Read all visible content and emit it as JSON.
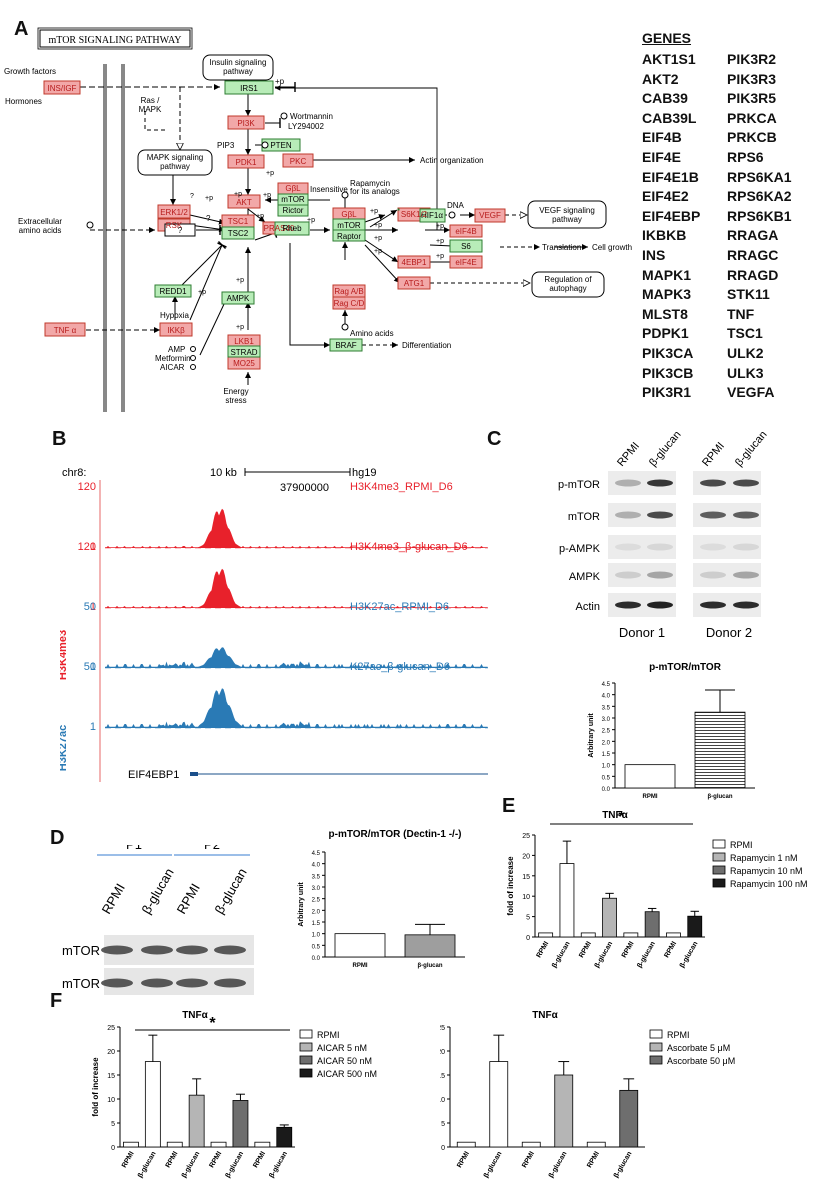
{
  "panels": {
    "A": "A",
    "B": "B",
    "C": "C",
    "D": "D",
    "E": "E",
    "F": "F"
  },
  "pathway": {
    "title": "mTOR SIGNALING PATHWAY",
    "growth_factors": "Growth factors",
    "ins_igf": "INS/IGF",
    "hormones": "Hormones",
    "insulin_pathway": [
      "Insulin signaling",
      "pathway"
    ],
    "irs1": "IRS1",
    "plus_p": "+p",
    "ras_mapk": [
      "Ras /",
      "MAPK"
    ],
    "pi3k": "PI3K",
    "wortmannin": "Wortmannin",
    "ly": "LY294002",
    "pip3": "PIP3",
    "pten": "PTEN",
    "mapk_pathway": [
      "MAPK signaling",
      "pathway"
    ],
    "pdk1": "PDK1",
    "pkc": "PKC",
    "actin_org": "Actin organization",
    "gbl": "GβL",
    "mtor": "mTOR",
    "rictor": "Rictor",
    "insensitive": "Insensitive",
    "rapamycin_analogs": [
      "Rapamycin",
      "for its analogs"
    ],
    "erk": "ERK1/2",
    "rsk": "RSK",
    "akt": "AKT",
    "pras40": "PRAS40",
    "raptor": "Raptor",
    "hif1a": "HIF1α",
    "dna": "DNA",
    "vegf": "VEGF",
    "vegf_pathway": [
      "VEGF signaling",
      "pathway"
    ],
    "eif4b": "eIF4B",
    "s6k": "S6K1/2",
    "s6": "S6",
    "translation": "Translation",
    "cell_growth": "Cell growth",
    "ebp1": "4EBP1",
    "eif4e": "eIF4E",
    "extracellular": [
      "Extracellular",
      "amino acids"
    ],
    "q": "?",
    "tsc1": "TSC1",
    "tsc2": "TSC2",
    "rheb": "Rheb",
    "atg1": "ATG1",
    "autophagy": [
      "Regulation of",
      "autophagy"
    ],
    "redd1": "REDD1",
    "rag_ab": "Rag A/B",
    "rag_cd": "Rag C/D",
    "amino_acids": "Amino acids",
    "ampk": "AMPK",
    "hypoxia": "Hypoxia",
    "tnfa": "TNF α",
    "ikkb": "IKKβ",
    "lkb1": "LKB1",
    "strad": "STRAD",
    "mo25": "MO25",
    "braf": "BRAF",
    "differentiation": "Differentiation",
    "amp": "AMP",
    "metformin": "Metformin",
    "aicar": "AICAR",
    "energy": [
      "Energy",
      "stress"
    ]
  },
  "genes": {
    "title": "GENES",
    "col1": [
      "AKT1S1",
      "AKT2",
      "CAB39",
      "CAB39L",
      "EIF4B",
      "EIF4E",
      "EIF4E1B",
      "EIF4E2",
      "EIF4EBP",
      "IKBKB",
      "INS",
      "MAPK1",
      "MAPK3",
      "MLST8",
      "PDPK1",
      "PIK3CA",
      "PIK3CB",
      "PIK3R1"
    ],
    "col2": [
      "PIK3R2",
      "PIK3R3",
      "PIK3R5",
      "PRKCA",
      "PRKCB",
      "RPS6",
      "RPS6KA1",
      "RPS6KA2",
      "RPS6KB1",
      "RRAGA",
      "RRAGC",
      "RRAGD",
      "STK11",
      "TNF",
      "TSC1",
      "ULK2",
      "ULK3",
      "VEGFA"
    ]
  },
  "browser": {
    "chr": "chr8:",
    "scale": "10 kb",
    "coord": "37900000",
    "genome": "hg19",
    "group1": "H3K4me3",
    "group2": "H3K27ac",
    "tracks": [
      {
        "name": "H3K4me3_RPMI_D6",
        "max": "120",
        "min": "1",
        "color": "#e8212b"
      },
      {
        "name": "H3K4me3_β-glucan_D6",
        "max": "120",
        "min": "1",
        "color": "#e8212b"
      },
      {
        "name": "H3K27ac_RPMI_D6",
        "max": "50",
        "min": "1",
        "color": "#2a7ab5"
      },
      {
        "name": "K27ac_β-glucan_D6",
        "max": "50",
        "min": "1",
        "color": "#2a7ab5"
      }
    ],
    "gene": "EIF4EBP1"
  },
  "blotC": {
    "lanes": [
      "RPMI",
      "β-glucan",
      "RPMI",
      "β-glucan"
    ],
    "rows": [
      "p-mTOR",
      "mTOR",
      "p-AMPK",
      "AMPK",
      "Actin"
    ],
    "donors": [
      "Donor 1",
      "Donor 2"
    ]
  },
  "blotD": {
    "groups": [
      "P1",
      "P2"
    ],
    "lanes": [
      "RPMI",
      "β-glucan",
      "RPMI",
      "β-glucan"
    ],
    "rows": [
      "p-mTOR",
      "mTOR"
    ]
  },
  "charts": {
    "C": {
      "title": "p-mTOR/mTOR",
      "ylabel": "Arbitrary unit"
    },
    "D": {
      "title": "p-mTOR/mTOR (Dectin-1 -/-)",
      "ylabel": "Arbitrary unit"
    },
    "E": {
      "title": "TNFα",
      "ylabel": "fold of increase",
      "star": "*",
      "legend": [
        "RPMI",
        "Rapamycin 1 nM",
        "Rapamycin 10 nM",
        "Rapamycin 100 nM"
      ]
    },
    "F1": {
      "title": "TNFα",
      "ylabel": "fold of increase",
      "star": "*",
      "legend": [
        "RPMI",
        "AICAR 5 nM",
        "AICAR 50 nM",
        "AICAR 500 nM"
      ]
    },
    "F2": {
      "title": "TNFα",
      "ylabel": "fold of increase",
      "legend": [
        "RPMI",
        "Ascorbate 5 μM",
        "Ascorbate 50 μM"
      ]
    }
  },
  "chart_data": [
    {
      "id": "C",
      "type": "bar",
      "title": "p-mTOR/mTOR",
      "ylabel": "Arbitrary unit",
      "categories": [
        "RPMI",
        "β-glucan"
      ],
      "values": [
        1.0,
        3.25
      ],
      "errors": [
        0,
        0.95
      ],
      "ylim": [
        0,
        4.5
      ],
      "yticks": [
        "0.0",
        "0.5",
        "1.0",
        "1.5",
        "2.0",
        "2.5",
        "3.0",
        "3.5",
        "4.0",
        "4.5"
      ]
    },
    {
      "id": "D",
      "type": "bar",
      "title": "p-mTOR/mTOR (Dectin-1 -/-)",
      "ylabel": "Arbitrary unit",
      "categories": [
        "RPMI",
        "β-glucan"
      ],
      "values": [
        1.0,
        0.95
      ],
      "errors": [
        0,
        0.45
      ],
      "ylim": [
        0,
        4.5
      ],
      "yticks": [
        "0.0",
        "0.5",
        "1.0",
        "1.5",
        "2.0",
        "2.5",
        "3.0",
        "3.5",
        "4.0",
        "4.5"
      ]
    },
    {
      "id": "E",
      "type": "bar",
      "title": "TNFα",
      "ylabel": "fold of increase",
      "categories": [
        "RPMI",
        "β-glucan",
        "RPMI",
        "β-glucan",
        "RPMI",
        "β-glucan",
        "RPMI",
        "β-glucan"
      ],
      "values": [
        1,
        18,
        1,
        9.5,
        1,
        6.2,
        1,
        5.1
      ],
      "errors": [
        0,
        5.5,
        0,
        1.2,
        0,
        0.8,
        0,
        1.2
      ],
      "ylim": [
        0,
        25
      ],
      "yticks": [
        "0",
        "5",
        "10",
        "15",
        "20",
        "25"
      ]
    },
    {
      "id": "F1",
      "type": "bar",
      "title": "TNFα",
      "ylabel": "fold of increase",
      "categories": [
        "RPMI",
        "β-glucan",
        "RPMI",
        "β-glucan",
        "RPMI",
        "β-glucan",
        "RPMI",
        "β-glucan"
      ],
      "values": [
        1,
        17.8,
        1,
        10.8,
        1,
        9.7,
        1,
        4.1
      ],
      "errors": [
        0,
        5.5,
        0,
        3.4,
        0,
        1.3,
        0,
        0.5
      ],
      "ylim": [
        0,
        25
      ],
      "yticks": [
        "0",
        "5",
        "10",
        "15",
        "20",
        "25"
      ]
    },
    {
      "id": "F2",
      "type": "bar",
      "title": "TNFα",
      "ylabel": "fold of increase",
      "categories": [
        "RPMI",
        "β-glucan",
        "RPMI",
        "β-glucan",
        "RPMI",
        "β-glucan"
      ],
      "values": [
        1,
        17.8,
        1,
        15,
        1,
        11.8
      ],
      "errors": [
        0,
        5.5,
        0,
        2.8,
        0,
        2.4
      ],
      "ylim": [
        0,
        25
      ],
      "yticks": [
        "0",
        "5",
        "10",
        "15",
        "20",
        "25"
      ]
    }
  ],
  "colors": {
    "pink": "#f2a8a8",
    "green": "#b8ecb8",
    "red_text": "#e8212b",
    "blue": "#2a7ab5"
  }
}
